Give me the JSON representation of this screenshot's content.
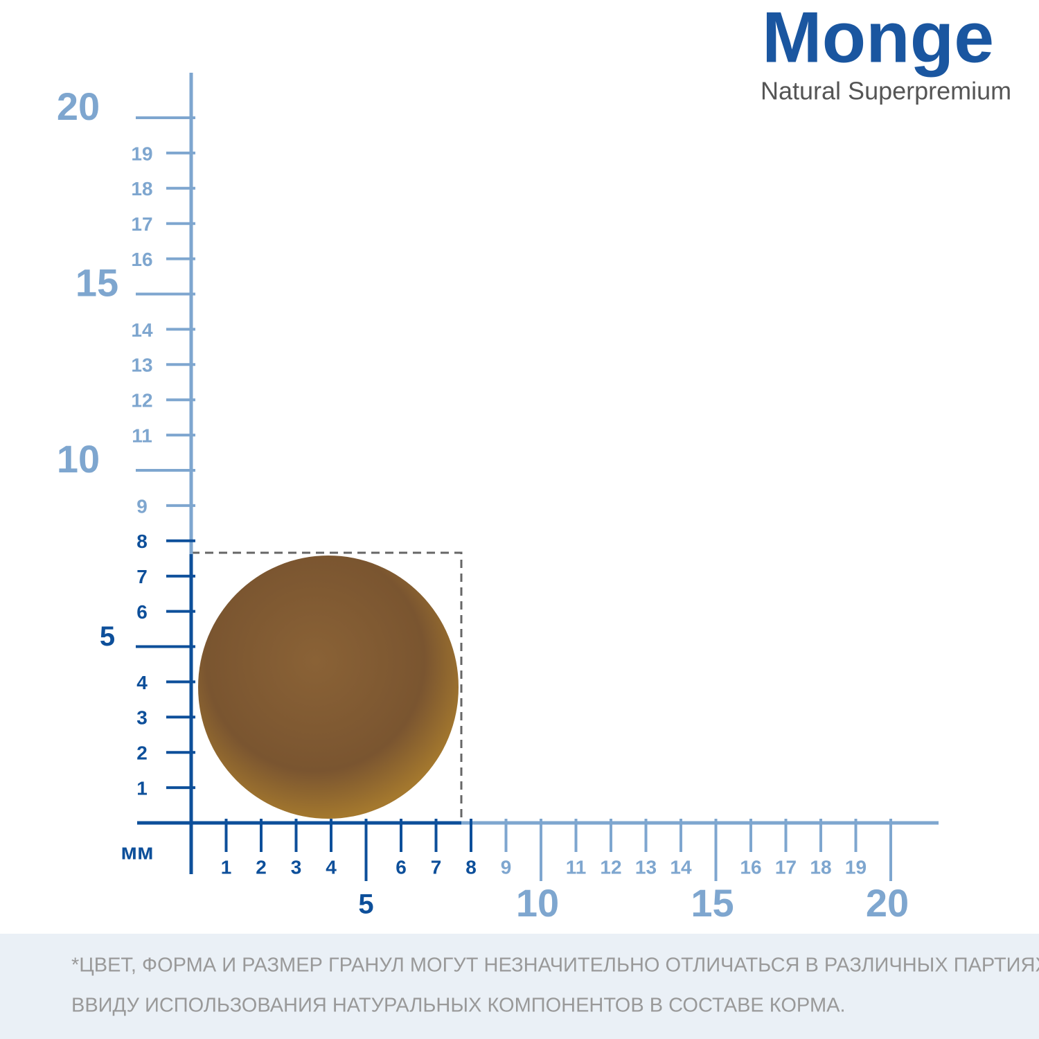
{
  "brand": {
    "name": "Monge",
    "tagline": "Natural Superpremium"
  },
  "ruler": {
    "unit": "мм",
    "y_axis": {
      "labels": [
        1,
        2,
        3,
        4,
        5,
        6,
        7,
        8,
        9,
        10,
        11,
        12,
        13,
        14,
        15,
        16,
        17,
        18,
        19,
        20
      ]
    },
    "x_axis": {
      "labels": [
        1,
        2,
        3,
        4,
        5,
        6,
        7,
        8,
        9,
        10,
        11,
        12,
        13,
        14,
        15,
        16,
        17,
        18,
        19,
        20
      ]
    }
  },
  "disclaimer": [
    "*ЦВЕТ, ФОРМА И РАЗМЕР ГРАНУЛ МОГУТ НЕЗНАЧИТЕЛЬНО ОТЛИЧАТЬСЯ В РАЗЛИЧНЫХ ПАРТИЯХ,",
    "ВВИДУ ИСПОЛЬЗОВАНИЯ НАТУРАЛЬНЫХ КОМПОНЕНТОВ В СОСТАВЕ КОРМА."
  ]
}
